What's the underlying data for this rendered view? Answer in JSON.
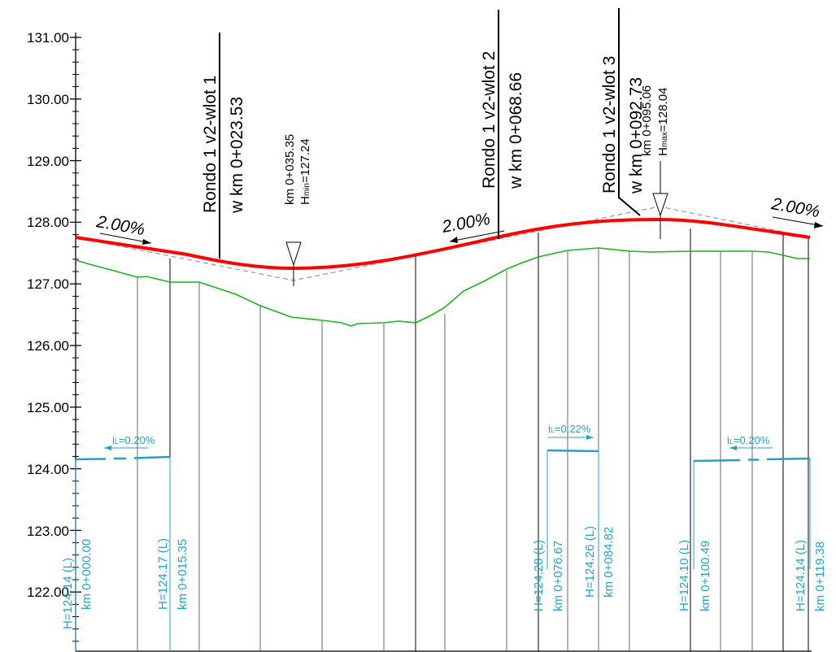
{
  "y_axis": {
    "labels": [
      "131.00",
      "130.00",
      "129.00",
      "128.00",
      "127.00",
      "126.00",
      "125.00",
      "124.00",
      "123.00",
      "122.00"
    ]
  },
  "roundabout_labels": [
    {
      "line1": "Rondo 1  v2-wlot 1",
      "line2": "w km 0+023.53"
    },
    {
      "line1": "Rondo 1  v2-wlot 2",
      "line2": "w km 0+068.66"
    },
    {
      "line1": "Rondo 1  v2-wlot  3",
      "line2": "w km 0+092.73"
    }
  ],
  "extremes": {
    "min": {
      "km": "km 0+035.35",
      "h_prefix": "H",
      "h_sub": "min",
      "h_value": "=127.24"
    },
    "max": {
      "km": "km 0+095.06",
      "h_prefix": "H",
      "h_sub": "max",
      "h_value": "=128.04"
    }
  },
  "grades": [
    "2.00%",
    "2.00%",
    "2.00%"
  ],
  "drainage_slopes": [
    {
      "prefix": "i",
      "sub": "L",
      "value": "=0.20%"
    },
    {
      "prefix": "i",
      "sub": "L",
      "value": "=0.22%"
    },
    {
      "prefix": "i",
      "sub": "L",
      "value": "=0.20%"
    }
  ],
  "drainage_points": [
    {
      "h": "H=124.14 (L)",
      "km": "km 0+000.00"
    },
    {
      "h": "H=124.17 (L)",
      "km": "km 0+015.35"
    },
    {
      "h": "H=124.28 (L)",
      "km": "km 0+076.67"
    },
    {
      "h": "H=124.26 (L)",
      "km": "km 0+084.82"
    },
    {
      "h": "H=124.10 (L)",
      "km": "km 0+100.49"
    },
    {
      "h": "H=124.14 (L)",
      "km": "km 0+119.38"
    }
  ],
  "colors": {
    "design_line": "#ff0000",
    "ground_line": "#20b020",
    "drainage": "#1fa3cc",
    "tangent": "#999999"
  }
}
